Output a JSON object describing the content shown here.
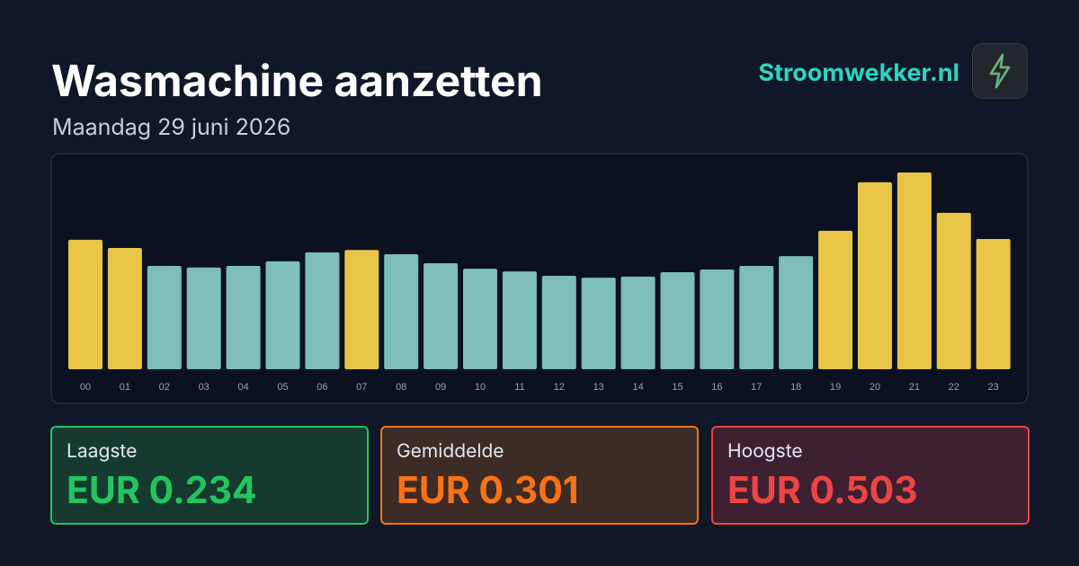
{
  "header": {
    "title": "Wasmachine aanzetten",
    "subtitle": "Maandag 29 juni 2026",
    "brand": "Stroomwekker.nl"
  },
  "chart_data": {
    "type": "bar",
    "categories": [
      "00",
      "01",
      "02",
      "03",
      "04",
      "05",
      "06",
      "07",
      "08",
      "09",
      "10",
      "11",
      "12",
      "13",
      "14",
      "15",
      "16",
      "17",
      "18",
      "19",
      "20",
      "21",
      "22",
      "23"
    ],
    "values": [
      0.331,
      0.31,
      0.264,
      0.26,
      0.264,
      0.276,
      0.299,
      0.305,
      0.294,
      0.271,
      0.257,
      0.25,
      0.239,
      0.234,
      0.237,
      0.248,
      0.255,
      0.264,
      0.289,
      0.354,
      0.478,
      0.503,
      0.4,
      0.333
    ],
    "colors": [
      "#e8c547",
      "#e8c547",
      "#7dbdbb",
      "#7dbdbb",
      "#7dbdbb",
      "#7dbdbb",
      "#7dbdbb",
      "#e8c547",
      "#7dbdbb",
      "#7dbdbb",
      "#7dbdbb",
      "#7dbdbb",
      "#7dbdbb",
      "#7dbdbb",
      "#7dbdbb",
      "#7dbdbb",
      "#7dbdbb",
      "#7dbdbb",
      "#7dbdbb",
      "#e8c547",
      "#e8c547",
      "#e8c547",
      "#e8c547",
      "#e8c547"
    ]
  },
  "stats": [
    {
      "label": "Laagste",
      "value": "EUR 0.234"
    },
    {
      "label": "Gemiddelde",
      "value": "EUR 0.301"
    },
    {
      "label": "Hoogste",
      "value": "EUR 0.503"
    }
  ]
}
